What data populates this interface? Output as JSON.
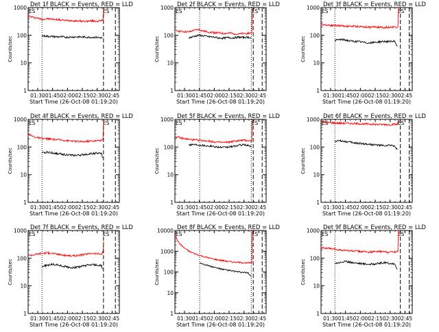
{
  "chart_data": [
    {
      "type": "line",
      "title": "Det 1f BLACK = Events, RED = LLD",
      "xlabel": "Start Time (26-Oct-08 01:19:20)",
      "ylabel": "Counts/sec",
      "yscale": "log",
      "ylim": [
        1,
        1000
      ],
      "yticks": [
        "1",
        "10",
        "100",
        "1000"
      ],
      "xticks": [
        "01:30",
        "01:45",
        "02:00",
        "02:15",
        "02:30",
        "02:45"
      ],
      "xlim_minutes": [
        1,
        93
      ],
      "marker_labels": [
        "ES",
        "ES"
      ],
      "dotted_lines_minutes": [
        15
      ],
      "dashed_lines_minutes": [
        77,
        89
      ],
      "series": [
        {
          "color": "#ff0000",
          "x": [
            1,
            5,
            10,
            15,
            20,
            25,
            30,
            35,
            40,
            45,
            50,
            55,
            60,
            65,
            70,
            75,
            76,
            77
          ],
          "y": [
            500,
            450,
            420,
            380,
            390,
            380,
            370,
            350,
            340,
            340,
            330,
            320,
            320,
            330,
            320,
            330,
            360,
            900
          ]
        },
        {
          "color": "#000000",
          "x": [
            15,
            20,
            30,
            40,
            50,
            60,
            70,
            76
          ],
          "y": [
            95,
            92,
            88,
            85,
            87,
            85,
            84,
            80
          ]
        }
      ]
    },
    {
      "type": "line",
      "title": "Det 2f BLACK = Events, RED = LLD",
      "xlabel": "Start Time (26-Oct-08 01:19:20)",
      "ylabel": "Counts/sec",
      "yscale": "log",
      "ylim": [
        1,
        1000
      ],
      "yticks": [
        "1",
        "10",
        "100",
        "1000"
      ],
      "xticks": [
        "01:30",
        "01:45",
        "02:00",
        "02:15",
        "02:30",
        "02:45"
      ],
      "xlim_minutes": [
        1,
        93
      ],
      "marker_labels": [
        "ES",
        "ES"
      ],
      "dotted_lines_minutes": [
        26,
        78
      ],
      "dashed_lines_minutes": [
        80,
        89
      ],
      "series": [
        {
          "color": "#ff0000",
          "x": [
            1,
            5,
            10,
            15,
            20,
            25,
            30,
            35,
            40,
            45,
            50,
            55,
            60,
            65,
            70,
            75,
            78,
            79
          ],
          "y": [
            150,
            140,
            135,
            130,
            150,
            160,
            140,
            130,
            125,
            120,
            115,
            120,
            115,
            110,
            115,
            118,
            120,
            1000
          ]
        },
        {
          "color": "#000000",
          "x": [
            15,
            20,
            25,
            30,
            35,
            40,
            45,
            50,
            55,
            60,
            65,
            70,
            75,
            78
          ],
          "y": [
            80,
            90,
            100,
            95,
            88,
            85,
            80,
            78,
            82,
            80,
            85,
            83,
            85,
            80
          ]
        }
      ]
    },
    {
      "type": "line",
      "title": "Det 3f BLACK = Events, RED = LLD",
      "xlabel": "Start Time (26-Oct-08 01:19:20)",
      "ylabel": "Counts/sec",
      "yscale": "log",
      "ylim": [
        1,
        1000
      ],
      "yticks": [
        "1",
        "10",
        "100",
        "1000"
      ],
      "xticks": [
        "01:30",
        "01:45",
        "02:00",
        "02:15",
        "02:30",
        "02:45"
      ],
      "xlim_minutes": [
        1,
        93
      ],
      "marker_labels": [
        "ES",
        "ES"
      ],
      "dotted_lines_minutes": [
        15
      ],
      "dashed_lines_minutes": [
        81,
        90
      ],
      "series": [
        {
          "color": "#ff0000",
          "x": [
            1,
            5,
            10,
            15,
            20,
            25,
            30,
            35,
            40,
            45,
            50,
            55,
            60,
            65,
            70,
            75,
            78,
            79
          ],
          "y": [
            250,
            240,
            230,
            225,
            220,
            215,
            210,
            210,
            205,
            200,
            195,
            200,
            195,
            190,
            195,
            200,
            200,
            1000
          ]
        },
        {
          "color": "#000000",
          "x": [
            15,
            20,
            25,
            30,
            35,
            40,
            45,
            50,
            55,
            60,
            65,
            70,
            75,
            78
          ],
          "y": [
            65,
            70,
            68,
            62,
            60,
            58,
            55,
            52,
            55,
            58,
            60,
            58,
            60,
            40
          ]
        }
      ]
    },
    {
      "type": "line",
      "title": "Det 4f BLACK = Events, RED = LLD",
      "xlabel": "Start Time (26-Oct-08 01:19:20)",
      "ylabel": "Counts/sec",
      "yscale": "log",
      "ylim": [
        1,
        1000
      ],
      "yticks": [
        "1",
        "10",
        "100",
        "1000"
      ],
      "xticks": [
        "01:30",
        "01:45",
        "02:00",
        "02:15",
        "02:30",
        "02:45"
      ],
      "xlim_minutes": [
        1,
        93
      ],
      "marker_labels": [
        "ES",
        "ES"
      ],
      "dotted_lines_minutes": [
        15
      ],
      "dashed_lines_minutes": [
        77,
        89
      ],
      "series": [
        {
          "color": "#ff0000",
          "x": [
            1,
            5,
            10,
            15,
            20,
            25,
            30,
            35,
            40,
            45,
            50,
            55,
            60,
            65,
            70,
            75,
            76,
            77
          ],
          "y": [
            300,
            250,
            220,
            200,
            200,
            190,
            185,
            180,
            170,
            165,
            160,
            155,
            160,
            165,
            170,
            175,
            180,
            900
          ]
        },
        {
          "color": "#000000",
          "x": [
            15,
            20,
            25,
            30,
            35,
            40,
            45,
            50,
            55,
            60,
            65,
            70,
            75,
            76
          ],
          "y": [
            60,
            65,
            62,
            58,
            55,
            53,
            50,
            50,
            52,
            55,
            58,
            60,
            58,
            40
          ]
        }
      ]
    },
    {
      "type": "line",
      "title": "Det 5f BLACK = Events, RED = LLD",
      "xlabel": "Start Time (26-Oct-08 01:19:20)",
      "ylabel": "Counts/sec",
      "yscale": "log",
      "ylim": [
        1,
        1000
      ],
      "yticks": [
        "1",
        "10",
        "100",
        "1000"
      ],
      "xticks": [
        "01:30",
        "01:45",
        "02:00",
        "02:15",
        "02:30",
        "02:45"
      ],
      "xlim_minutes": [
        1,
        93
      ],
      "marker_labels": [
        "ES",
        "ES"
      ],
      "dotted_lines_minutes": [
        26,
        78
      ],
      "dashed_lines_minutes": [
        80,
        89
      ],
      "series": [
        {
          "color": "#ff0000",
          "x": [
            1,
            5,
            10,
            15,
            20,
            25,
            30,
            35,
            40,
            45,
            50,
            55,
            60,
            65,
            70,
            75,
            78,
            79
          ],
          "y": [
            240,
            220,
            200,
            190,
            180,
            175,
            170,
            165,
            155,
            150,
            145,
            150,
            160,
            170,
            175,
            170,
            165,
            1000
          ]
        },
        {
          "color": "#000000",
          "x": [
            15,
            20,
            25,
            30,
            35,
            40,
            45,
            50,
            55,
            60,
            65,
            70,
            75,
            78
          ],
          "y": [
            120,
            125,
            120,
            115,
            110,
            105,
            100,
            95,
            100,
            105,
            115,
            120,
            115,
            100
          ]
        }
      ]
    },
    {
      "type": "line",
      "title": "Det 6f BLACK = Events, RED = LLD",
      "xlabel": "Start Time (26-Oct-08 01:19:20)",
      "ylabel": "Counts/sec",
      "yscale": "log",
      "ylim": [
        1,
        1000
      ],
      "yticks": [
        "1",
        "10",
        "100",
        "1000"
      ],
      "xticks": [
        "01:30",
        "01:45",
        "02:00",
        "02:15",
        "02:30",
        "02:45"
      ],
      "xlim_minutes": [
        1,
        93
      ],
      "marker_labels": [
        "ES",
        "ES"
      ],
      "dotted_lines_minutes": [
        15
      ],
      "dashed_lines_minutes": [
        81,
        90
      ],
      "series": [
        {
          "color": "#ff0000",
          "x": [
            1,
            5,
            10,
            15,
            20,
            25,
            30,
            35,
            40,
            45,
            50,
            55,
            60,
            65,
            70,
            75,
            78,
            79
          ],
          "y": [
            850,
            780,
            760,
            740,
            730,
            720,
            710,
            700,
            690,
            680,
            670,
            660,
            650,
            655,
            650,
            660,
            650,
            1000
          ]
        },
        {
          "color": "#000000",
          "x": [
            15,
            20,
            25,
            30,
            35,
            40,
            45,
            50,
            55,
            60,
            65,
            70,
            75,
            78
          ],
          "y": [
            160,
            170,
            160,
            150,
            140,
            135,
            130,
            125,
            120,
            115,
            110,
            115,
            110,
            80
          ]
        }
      ]
    },
    {
      "type": "line",
      "title": "Det 7f BLACK = Events, RED = LLD",
      "xlabel": "Start Time (26-Oct-08 01:19:20)",
      "ylabel": "Counts/sec",
      "yscale": "log",
      "ylim": [
        1,
        1000
      ],
      "yticks": [
        "1",
        "10",
        "100",
        "1000"
      ],
      "xticks": [
        "01:30",
        "01:45",
        "02:00",
        "02:15",
        "02:30",
        "02:45"
      ],
      "xlim_minutes": [
        1,
        93
      ],
      "marker_labels": [
        "ES",
        "ES"
      ],
      "dotted_lines_minutes": [
        15
      ],
      "dashed_lines_minutes": [
        77,
        89
      ],
      "series": [
        {
          "color": "#ff0000",
          "x": [
            1,
            5,
            10,
            15,
            20,
            25,
            30,
            35,
            40,
            45,
            50,
            55,
            60,
            65,
            70,
            75,
            76,
            77
          ],
          "y": [
            130,
            130,
            140,
            150,
            155,
            150,
            140,
            130,
            125,
            120,
            125,
            130,
            140,
            150,
            145,
            140,
            160,
            400
          ]
        },
        {
          "color": "#000000",
          "x": [
            15,
            20,
            25,
            30,
            35,
            40,
            45,
            50,
            55,
            60,
            65,
            70,
            75,
            76
          ],
          "y": [
            50,
            55,
            60,
            58,
            52,
            48,
            45,
            47,
            50,
            55,
            58,
            56,
            55,
            40
          ]
        }
      ]
    },
    {
      "type": "line",
      "title": "Det 8f BLACK = Events, RED = LLD",
      "xlabel": "Start Time (26-Oct-08 01:19:20)",
      "ylabel": "Counts/sec",
      "yscale": "log",
      "ylim": [
        1,
        10000
      ],
      "yticks": [
        "1",
        "10",
        "100",
        "1000",
        "10000"
      ],
      "xticks": [
        "01:30",
        "01:45",
        "02:00",
        "02:15",
        "02:30",
        "02:45"
      ],
      "xlim_minutes": [
        1,
        93
      ],
      "marker_labels": [
        "ES",
        "ES"
      ],
      "dotted_lines_minutes": [
        26,
        78
      ],
      "dashed_lines_minutes": [
        80,
        89
      ],
      "series": [
        {
          "color": "#ff0000",
          "x": [
            1,
            5,
            10,
            15,
            20,
            25,
            30,
            35,
            40,
            45,
            50,
            55,
            60,
            65,
            70,
            75,
            78,
            79
          ],
          "y": [
            6000,
            2500,
            1500,
            1000,
            800,
            650,
            550,
            480,
            420,
            380,
            350,
            320,
            300,
            290,
            280,
            270,
            280,
            10000
          ]
        },
        {
          "color": "#000000",
          "x": [
            26,
            30,
            35,
            40,
            45,
            50,
            55,
            60,
            65,
            70,
            75,
            78
          ],
          "y": [
            280,
            240,
            200,
            170,
            150,
            130,
            120,
            110,
            100,
            95,
            90,
            60
          ]
        }
      ]
    },
    {
      "type": "line",
      "title": "Det 9f BLACK = Events, RED = LLD",
      "xlabel": "Start Time (26-Oct-08 01:19:20)",
      "ylabel": "Counts/sec",
      "yscale": "log",
      "ylim": [
        1,
        1000
      ],
      "yticks": [
        "1",
        "10",
        "100",
        "1000"
      ],
      "xticks": [
        "01:30",
        "01:45",
        "02:00",
        "02:15",
        "02:30",
        "02:45"
      ],
      "xlim_minutes": [
        1,
        93
      ],
      "marker_labels": [
        "ES",
        "ES"
      ],
      "dotted_lines_minutes": [
        15
      ],
      "dashed_lines_minutes": [
        81,
        90
      ],
      "series": [
        {
          "color": "#ff0000",
          "x": [
            1,
            5,
            10,
            15,
            20,
            25,
            30,
            35,
            40,
            45,
            50,
            55,
            60,
            65,
            70,
            75,
            78,
            79
          ],
          "y": [
            250,
            230,
            220,
            210,
            200,
            190,
            185,
            180,
            175,
            170,
            165,
            170,
            175,
            170,
            165,
            170,
            175,
            1000
          ]
        },
        {
          "color": "#000000",
          "x": [
            15,
            20,
            25,
            30,
            35,
            40,
            45,
            50,
            55,
            60,
            65,
            70,
            75,
            78
          ],
          "y": [
            65,
            70,
            75,
            72,
            68,
            65,
            62,
            60,
            62,
            65,
            68,
            65,
            60,
            40
          ]
        }
      ]
    }
  ]
}
